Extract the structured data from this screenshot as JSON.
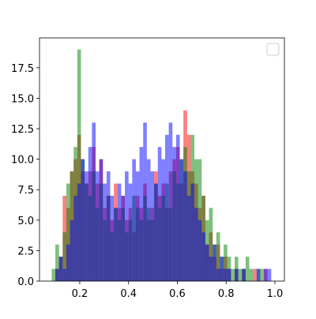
{
  "chart_data": {
    "type": "histogram",
    "bins": [
      0.085,
      0.1,
      0.115,
      0.13,
      0.145,
      0.16,
      0.175,
      0.19,
      0.205,
      0.22,
      0.235,
      0.25,
      0.265,
      0.28,
      0.295,
      0.31,
      0.325,
      0.34,
      0.355,
      0.37,
      0.385,
      0.4,
      0.415,
      0.43,
      0.445,
      0.46,
      0.475,
      0.49,
      0.505,
      0.52,
      0.535,
      0.55,
      0.565,
      0.58,
      0.595,
      0.61,
      0.625,
      0.64,
      0.655,
      0.67,
      0.685,
      0.7,
      0.715,
      0.73,
      0.745,
      0.76,
      0.775,
      0.79,
      0.805,
      0.82,
      0.835,
      0.85,
      0.865,
      0.88,
      0.895,
      0.91,
      0.925,
      0.94,
      0.955,
      0.97,
      0.985
    ],
    "series": [
      {
        "color": "#ff0000",
        "values": [
          0,
          1,
          2,
          7,
          6,
          9,
          10,
          12,
          9,
          8,
          9,
          11,
          8,
          10,
          6,
          7,
          5,
          8,
          6,
          7,
          5,
          6,
          4,
          7,
          6,
          8,
          5,
          6,
          9,
          7,
          8,
          6,
          9,
          10,
          11,
          8,
          14,
          12,
          9,
          8,
          6,
          7,
          3,
          4,
          2,
          3,
          1,
          2,
          1,
          0,
          1,
          0,
          1,
          0,
          0,
          1,
          0,
          0,
          1,
          0
        ]
      },
      {
        "color": "#008000",
        "values": [
          1,
          3,
          2,
          4,
          8,
          9,
          11,
          19,
          10,
          8,
          7,
          9,
          6,
          8,
          5,
          7,
          4,
          6,
          5,
          6,
          4,
          5,
          7,
          6,
          5,
          7,
          6,
          5,
          8,
          6,
          7,
          8,
          6,
          9,
          8,
          10,
          11,
          9,
          12,
          10,
          10,
          7,
          5,
          6,
          3,
          4,
          2,
          3,
          2,
          1,
          2,
          1,
          1,
          2,
          1,
          0,
          1,
          1,
          0,
          0
        ]
      },
      {
        "color": "#0000ff",
        "values": [
          0,
          1,
          2,
          1,
          3,
          5,
          7,
          8,
          10,
          9,
          11,
          13,
          9,
          10,
          8,
          9,
          7,
          6,
          8,
          7,
          9,
          8,
          10,
          9,
          11,
          13,
          10,
          9,
          8,
          11,
          10,
          12,
          13,
          11,
          12,
          10,
          9,
          7,
          8,
          6,
          5,
          4,
          3,
          2,
          3,
          1,
          2,
          1,
          1,
          0,
          1,
          0,
          1,
          0,
          0,
          0,
          1,
          0,
          1,
          1
        ]
      }
    ],
    "alpha": 0.5,
    "xlim": [
      0.035,
      1.039
    ],
    "ylim": [
      0,
      19.95
    ],
    "xticks": [
      0.2,
      0.4,
      0.6,
      0.8,
      {
        "value": 1,
        "label": "1.0"
      }
    ],
    "yticks": [
      {
        "value": 0,
        "label": "0.0"
      },
      2.5,
      {
        "value": 5,
        "label": "5.0"
      },
      7.5,
      {
        "value": 10,
        "label": "10.0"
      },
      12.5,
      {
        "value": 15,
        "label": "15.0"
      },
      17.5
    ],
    "legend": "upper right"
  }
}
